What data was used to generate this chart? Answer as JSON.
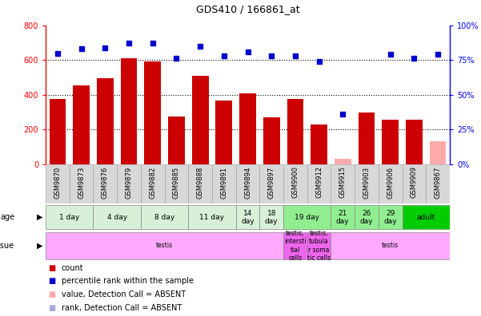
{
  "title": "GDS410 / 166861_at",
  "samples": [
    "GSM9870",
    "GSM9873",
    "GSM9876",
    "GSM9879",
    "GSM9882",
    "GSM9885",
    "GSM9888",
    "GSM9891",
    "GSM9894",
    "GSM9897",
    "GSM9900",
    "GSM9912",
    "GSM9915",
    "GSM9903",
    "GSM9906",
    "GSM9909",
    "GSM9867"
  ],
  "counts": [
    375,
    455,
    495,
    610,
    590,
    275,
    510,
    365,
    410,
    270,
    375,
    230,
    30,
    300,
    255,
    255,
    135
  ],
  "absent_count": [
    false,
    false,
    false,
    false,
    false,
    false,
    false,
    false,
    false,
    false,
    false,
    false,
    true,
    false,
    false,
    false,
    true
  ],
  "percentile_ranks": [
    80,
    83,
    84,
    87,
    87,
    76,
    85,
    78,
    81,
    78,
    78,
    74,
    36,
    null,
    79,
    76,
    79
  ],
  "absent_rank": [
    false,
    false,
    false,
    false,
    false,
    false,
    false,
    false,
    false,
    false,
    false,
    false,
    false,
    true,
    false,
    false,
    false
  ],
  "age_groups": [
    {
      "label": "1 day",
      "start": 0,
      "end": 2,
      "color": "#d8f0d8"
    },
    {
      "label": "4 day",
      "start": 2,
      "end": 4,
      "color": "#d8f0d8"
    },
    {
      "label": "8 day",
      "start": 4,
      "end": 6,
      "color": "#d8f0d8"
    },
    {
      "label": "11 day",
      "start": 6,
      "end": 8,
      "color": "#d8f0d8"
    },
    {
      "label": "14\nday",
      "start": 8,
      "end": 9,
      "color": "#d8f0d8"
    },
    {
      "label": "18\nday",
      "start": 9,
      "end": 10,
      "color": "#d8f0d8"
    },
    {
      "label": "19 day",
      "start": 10,
      "end": 12,
      "color": "#90ee90"
    },
    {
      "label": "21\nday",
      "start": 12,
      "end": 13,
      "color": "#90ee90"
    },
    {
      "label": "26\nday",
      "start": 13,
      "end": 14,
      "color": "#90ee90"
    },
    {
      "label": "29\nday",
      "start": 14,
      "end": 15,
      "color": "#90ee90"
    },
    {
      "label": "adult",
      "start": 15,
      "end": 17,
      "color": "#00cc00"
    }
  ],
  "tissue_groups": [
    {
      "label": "testis",
      "start": 0,
      "end": 10,
      "color": "#ffaaff"
    },
    {
      "label": "testis,\nintersti\ntial\ncells",
      "start": 10,
      "end": 11,
      "color": "#ee66ee"
    },
    {
      "label": "testis,\ntubula\nr soma\ntic cells",
      "start": 11,
      "end": 12,
      "color": "#ee66ee"
    },
    {
      "label": "testis",
      "start": 12,
      "end": 17,
      "color": "#ffaaff"
    }
  ],
  "bar_color": "#cc0000",
  "absent_bar_color": "#ffaaaa",
  "dot_color": "#0000cc",
  "absent_dot_color": "#aaaadd",
  "ylim_left": [
    0,
    800
  ],
  "ylim_right": [
    0,
    100
  ],
  "yticks_left": [
    0,
    200,
    400,
    600,
    800
  ],
  "yticks_right": [
    0,
    25,
    50,
    75,
    100
  ],
  "background_color": "#ffffff"
}
